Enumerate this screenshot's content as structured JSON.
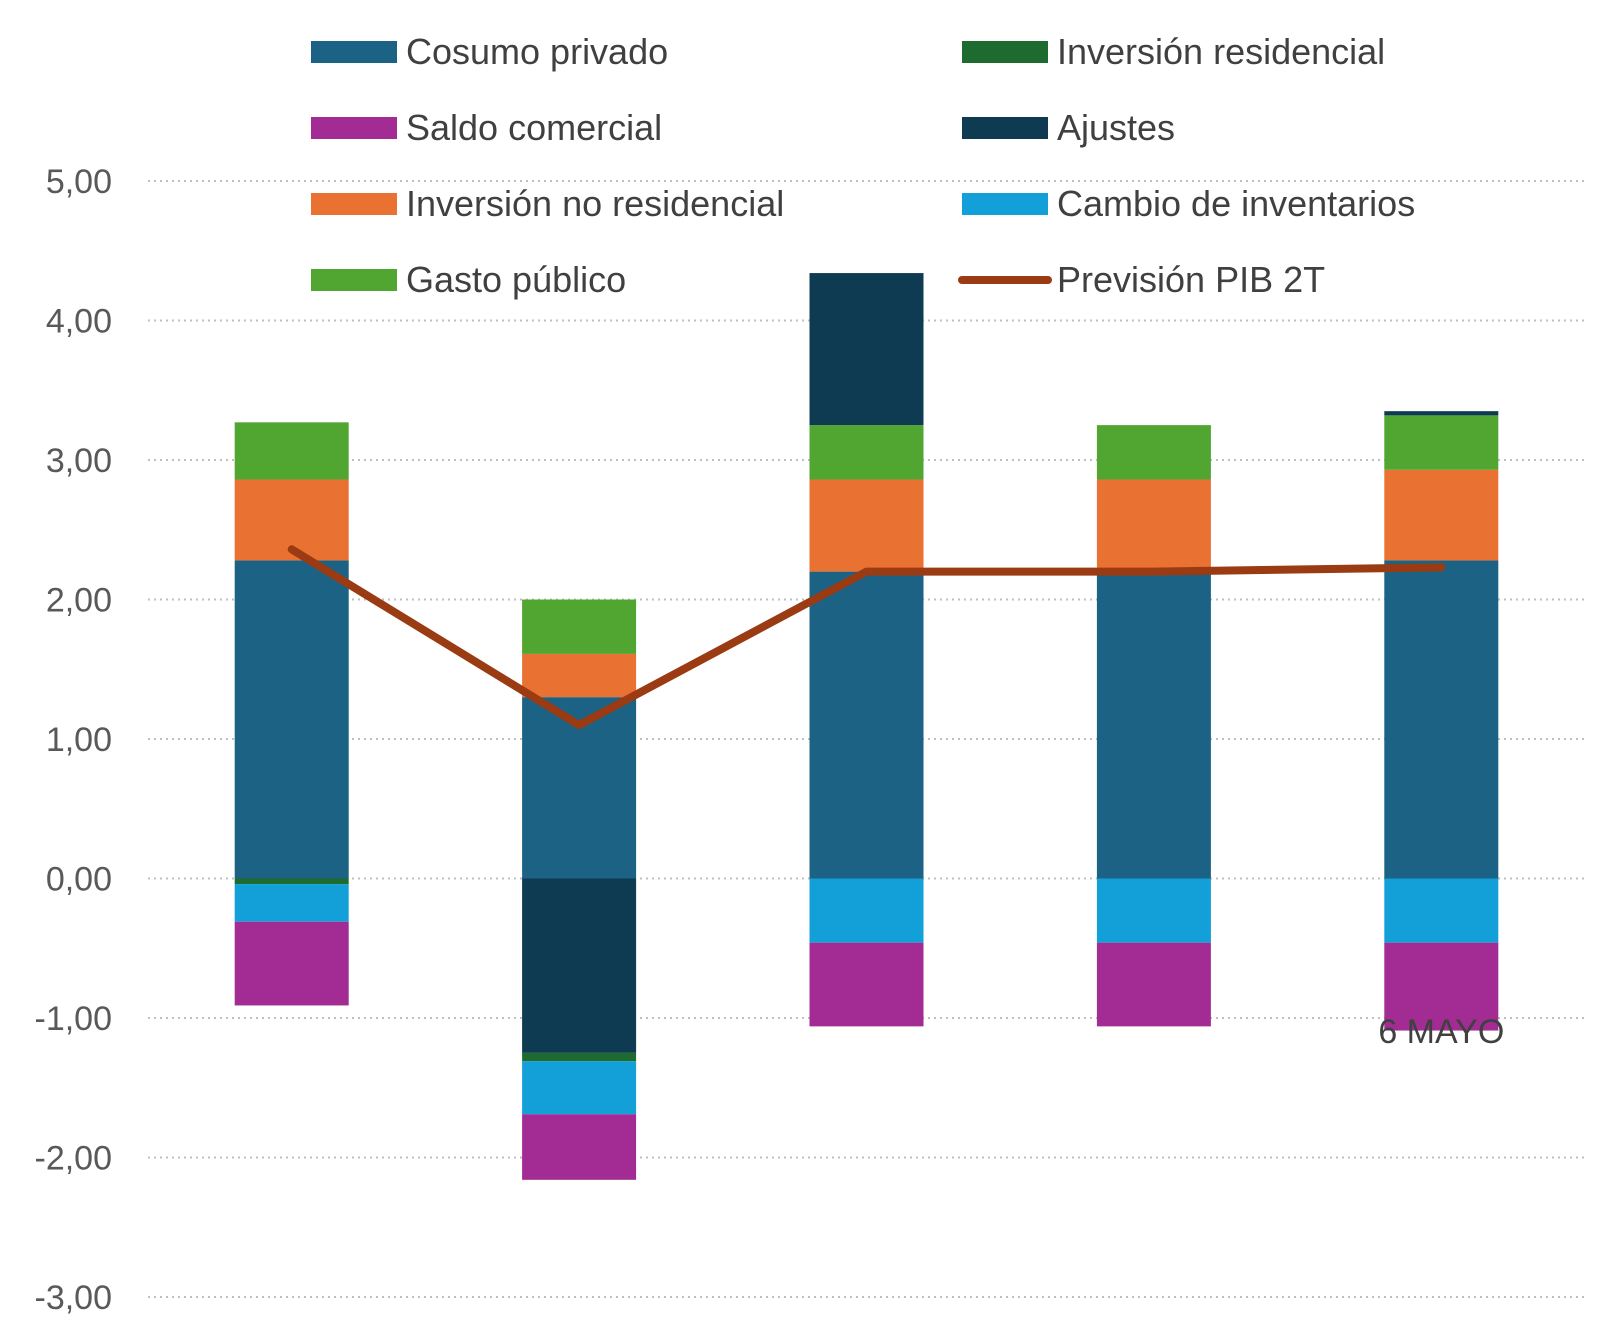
{
  "chart_data": {
    "type": "bar",
    "stacked": true,
    "categories": [
      "",
      "",
      "",
      "",
      ""
    ],
    "ylim": [
      -3,
      5
    ],
    "yticks": [
      "5,00",
      "4,00",
      "3,00",
      "2,00",
      "1,00",
      "0,00",
      "-1,00",
      "-2,00",
      "-3,00"
    ],
    "ytick_values": [
      5,
      4,
      3,
      2,
      1,
      0,
      -1,
      -2,
      -3
    ],
    "grid": true,
    "legend_position": "top",
    "series": [
      {
        "name": "Cosumo privado",
        "color": "#1b6285",
        "values": [
          2.28,
          1.3,
          2.2,
          2.2,
          2.28
        ]
      },
      {
        "name": "Inversión residencial",
        "color": "#1e6b2f",
        "values": [
          -0.04,
          -0.06,
          0.0,
          0.0,
          0.0
        ]
      },
      {
        "name": "Saldo comercial",
        "color": "#a22c93",
        "values": [
          -0.6,
          -0.47,
          -0.6,
          -0.6,
          -0.63
        ]
      },
      {
        "name": "Ajustes",
        "color": "#0f3b52",
        "values": [
          0.0,
          -1.25,
          1.09,
          0.0,
          0.03
        ]
      },
      {
        "name": "Inversión no residencial",
        "color": "#e97232",
        "values": [
          0.58,
          0.31,
          0.66,
          0.66,
          0.65
        ]
      },
      {
        "name": "Cambio de inventarios",
        "color": "#139fd7",
        "values": [
          -0.27,
          -0.38,
          -0.46,
          -0.46,
          -0.46
        ]
      },
      {
        "name": "Gasto público",
        "color": "#51a631",
        "values": [
          0.41,
          0.39,
          0.39,
          0.39,
          0.39
        ]
      }
    ],
    "stack_order": [
      "Cosumo privado",
      "Inversión no residencial",
      "Gasto público",
      "Ajustes",
      "Inversión residencial",
      "Cambio de inventarios",
      "Saldo comercial"
    ],
    "line_series": {
      "name": "Previsión PIB 2T",
      "color": "#9a3b14",
      "values": [
        2.36,
        1.1,
        2.2,
        2.2,
        2.23
      ]
    },
    "annotations": [
      {
        "text": "6 MAYO"
      }
    ]
  }
}
